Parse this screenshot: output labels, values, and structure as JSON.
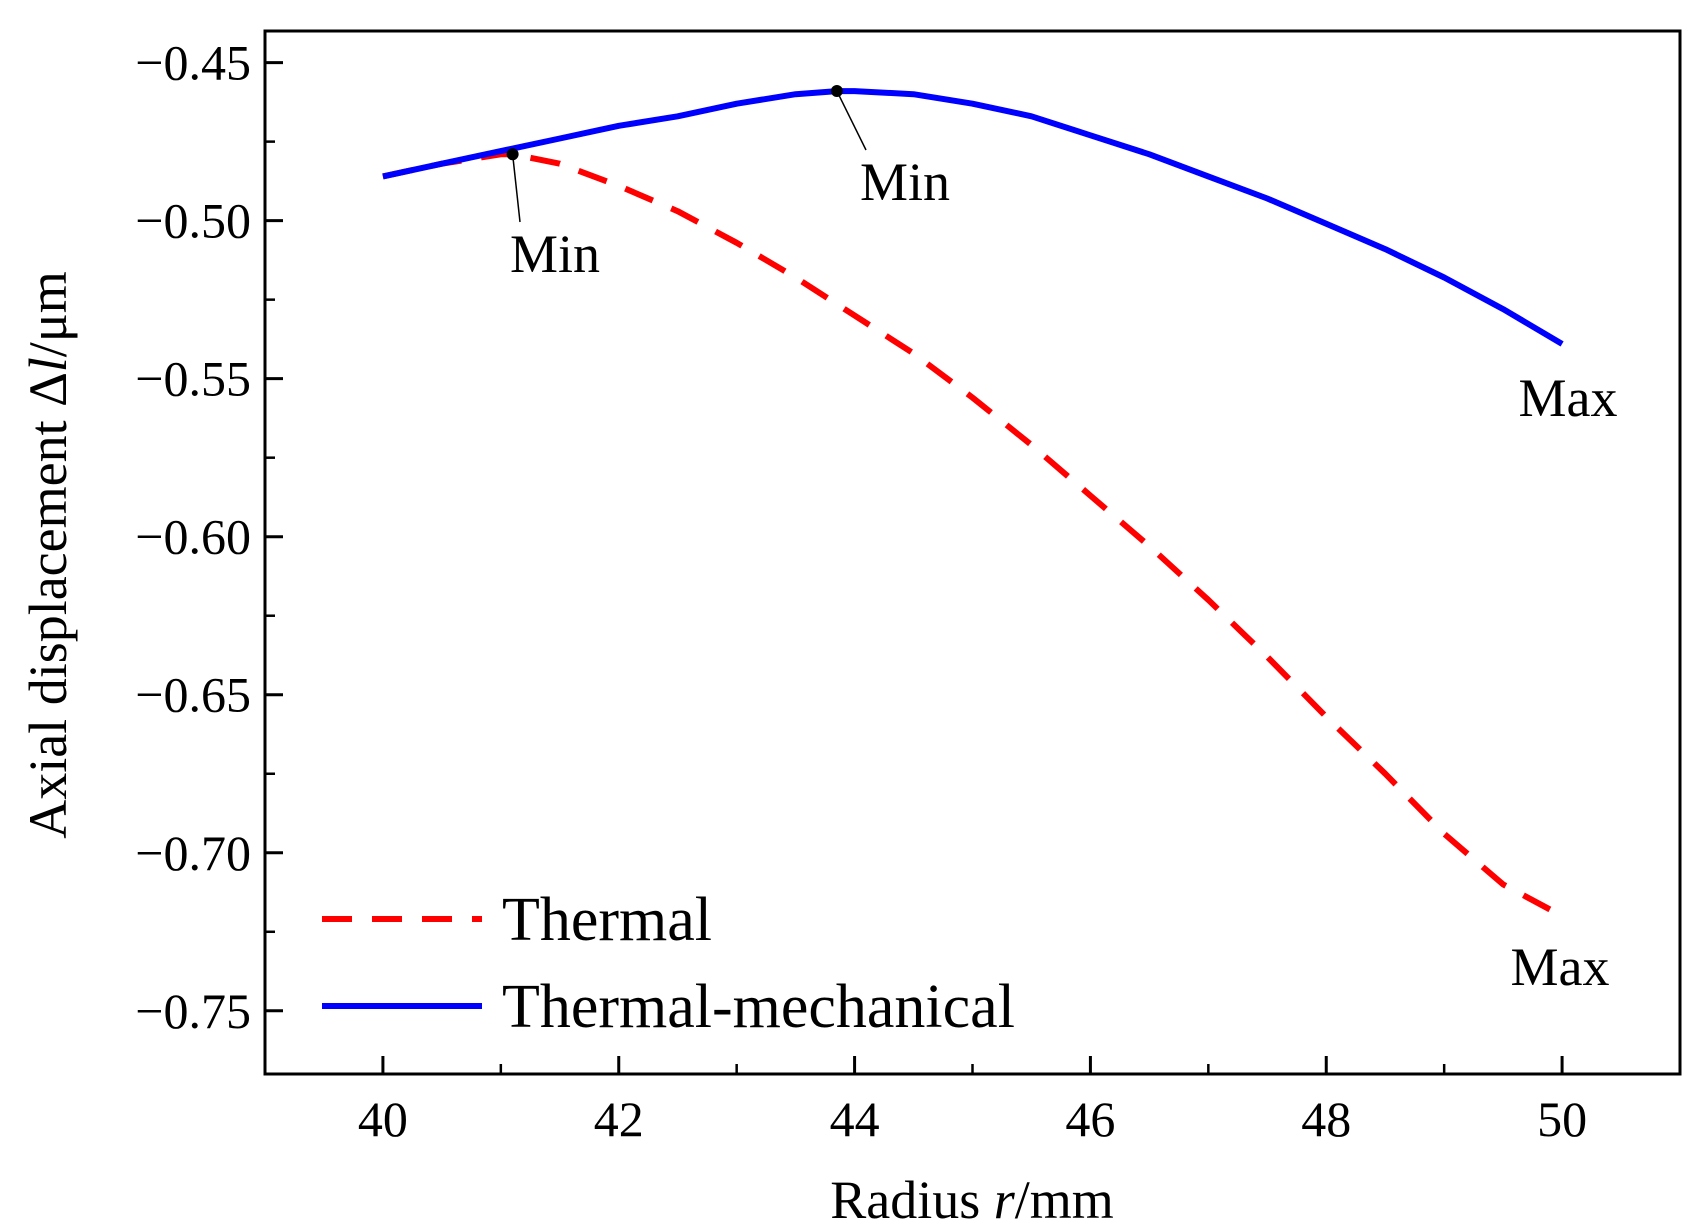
{
  "chart_data": {
    "type": "line",
    "xlabel": {
      "pre": "Radius ",
      "var": "r",
      "post": "/mm"
    },
    "ylabel": {
      "pre": "Axial displacement Δ",
      "var": "l",
      "post": "/μm"
    },
    "xlim": [
      39,
      51
    ],
    "ylim": [
      -0.77,
      -0.44
    ],
    "xticks": [
      40,
      42,
      44,
      46,
      48,
      50
    ],
    "xtick_labels": [
      "40",
      "42",
      "44",
      "46",
      "48",
      "50"
    ],
    "xticks_minor": [
      39,
      41,
      43,
      45,
      47,
      49,
      51
    ],
    "yticks": [
      -0.45,
      -0.5,
      -0.55,
      -0.6,
      -0.65,
      -0.7,
      -0.75
    ],
    "ytick_labels": [
      "−0.45",
      "−0.50",
      "−0.55",
      "−0.60",
      "−0.65",
      "−0.70",
      "−0.75"
    ],
    "yticks_minor": [
      -0.475,
      -0.525,
      -0.575,
      -0.625,
      -0.675,
      -0.725
    ],
    "series": [
      {
        "name": "Thermal",
        "color": "#ff0000",
        "style": "dashed",
        "x": [
          40.0,
          40.5,
          41.0,
          41.1,
          41.5,
          42.0,
          42.5,
          43.0,
          43.5,
          44.0,
          44.5,
          45.0,
          45.5,
          46.0,
          46.5,
          47.0,
          47.5,
          48.0,
          48.5,
          49.0,
          49.5,
          50.0
        ],
        "y": [
          -0.486,
          -0.482,
          -0.479,
          -0.479,
          -0.482,
          -0.489,
          -0.497,
          -0.507,
          -0.518,
          -0.53,
          -0.542,
          -0.556,
          -0.571,
          -0.587,
          -0.603,
          -0.62,
          -0.638,
          -0.657,
          -0.675,
          -0.694,
          -0.71,
          -0.72
        ]
      },
      {
        "name": "Thermal-mechanical",
        "color": "#0000ff",
        "style": "solid",
        "x": [
          40.0,
          40.5,
          41.0,
          41.5,
          42.0,
          42.5,
          43.0,
          43.5,
          43.85,
          44.0,
          44.5,
          45.0,
          45.5,
          46.0,
          46.5,
          47.0,
          47.5,
          48.0,
          48.5,
          49.0,
          49.5,
          50.0
        ],
        "y": [
          -0.486,
          -0.482,
          -0.478,
          -0.474,
          -0.47,
          -0.467,
          -0.463,
          -0.46,
          -0.459,
          -0.459,
          -0.46,
          -0.463,
          -0.467,
          -0.473,
          -0.479,
          -0.486,
          -0.493,
          -0.501,
          -0.509,
          -0.518,
          -0.528,
          -0.539
        ]
      }
    ],
    "annotations": [
      {
        "text": "Min",
        "series": "Thermal",
        "x": 41.1,
        "y": -0.479
      },
      {
        "text": "Min",
        "series": "Thermal-mechanical",
        "x": 43.85,
        "y": -0.459
      },
      {
        "text": "Max",
        "series": "Thermal-mechanical",
        "x": 50.0,
        "y": -0.539
      },
      {
        "text": "Max",
        "series": "Thermal",
        "x": 50.0,
        "y": -0.72
      }
    ],
    "legend_position": "bottom-left"
  }
}
